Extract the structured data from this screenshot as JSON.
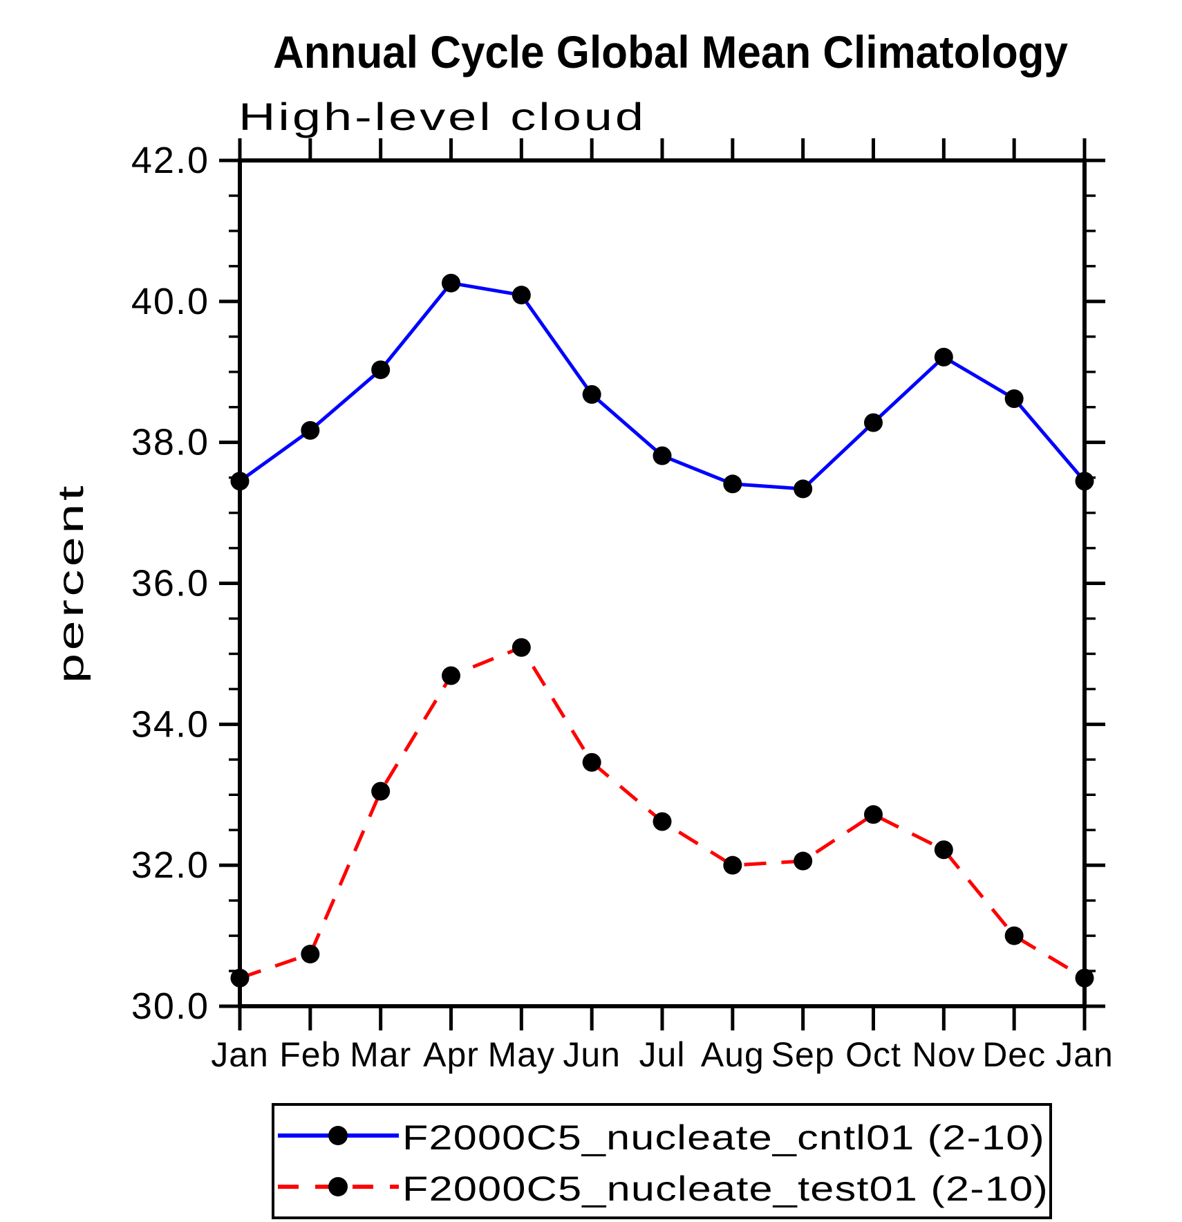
{
  "legend": {
    "entries": [
      {
        "label": "F2000C5_nucleate_cntl01 (2-10)",
        "style": "solid",
        "color": "#0000ff",
        "marker_color": "#000000"
      },
      {
        "label": "F2000C5_nucleate_test01 (2-10)",
        "style": "dashed",
        "color": "#ff0000",
        "marker_color": "#000000"
      }
    ]
  },
  "colors": {
    "cntl01_line": "#0000ff",
    "test01_line": "#ff0000",
    "marker": "#000000",
    "axis": "#000000",
    "background": "#ffffff"
  },
  "chart_data": {
    "type": "line",
    "title": "Annual Cycle Global Mean Climatology",
    "subtitle": "High-level cloud",
    "xlabel": "",
    "ylabel": "percent",
    "categories": [
      "Jan",
      "Feb",
      "Mar",
      "Apr",
      "May",
      "Jun",
      "Jul",
      "Aug",
      "Sep",
      "Oct",
      "Nov",
      "Dec",
      "Jan"
    ],
    "series": [
      {
        "name": "F2000C5_nucleate_cntl01 (2-10)",
        "color": "#0000ff",
        "line": "solid",
        "marker": "circle",
        "values": [
          37.45,
          38.17,
          39.03,
          40.26,
          40.09,
          38.68,
          37.81,
          37.41,
          37.34,
          38.28,
          39.21,
          38.62,
          37.45
        ]
      },
      {
        "name": "F2000C5_nucleate_test01 (2-10)",
        "color": "#ff0000",
        "line": "dashed",
        "marker": "circle",
        "values": [
          30.4,
          30.74,
          33.05,
          34.69,
          35.09,
          33.46,
          32.62,
          32.0,
          32.06,
          32.72,
          32.22,
          31.0,
          30.4
        ]
      }
    ],
    "ylim": [
      30.0,
      42.0
    ],
    "yticks_major": [
      30.0,
      32.0,
      34.0,
      36.0,
      38.0,
      40.0,
      42.0
    ],
    "ytick_labels": [
      "30.0",
      "32.0",
      "34.0",
      "36.0",
      "38.0",
      "40.0",
      "42.0"
    ],
    "yminor_step": 0.5,
    "grid": false,
    "legend_position": "bottom"
  }
}
